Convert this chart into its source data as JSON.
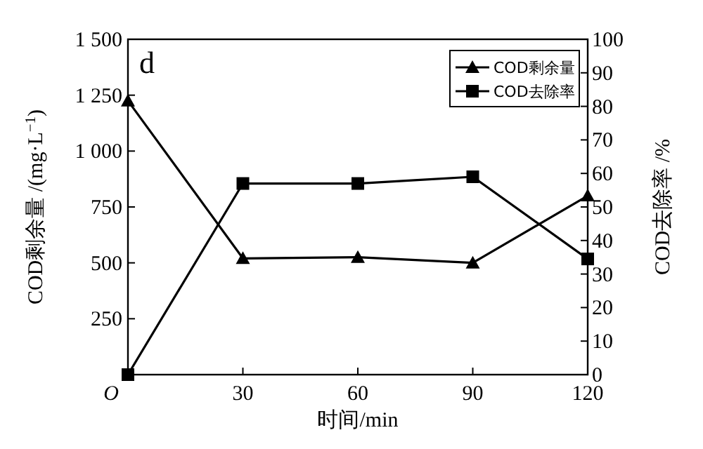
{
  "chart_data": {
    "type": "line",
    "xlabel": "时间/min",
    "ylabel": "COD剩余量 /(mg·L$^{−1}$)",
    "y2label": "COD去除率 /%",
    "annotations": [
      "d"
    ],
    "x": [
      0,
      30,
      60,
      90,
      120
    ],
    "xlim": [
      0,
      120
    ],
    "xticks": [
      {
        "value": 0,
        "label": "O"
      },
      30,
      60,
      90,
      120
    ],
    "ylim": [
      0,
      1500
    ],
    "yticks": [
      {
        "value": 0,
        "label": null
      },
      250,
      500,
      750,
      {
        "value": 1000,
        "label": "1 000"
      },
      {
        "value": 1250,
        "label": "1 250"
      },
      {
        "value": 1500,
        "label": "1 500"
      }
    ],
    "y2lim": [
      0,
      100
    ],
    "y2ticks": [
      0,
      10,
      20,
      30,
      40,
      50,
      60,
      70,
      80,
      90,
      100
    ],
    "legend": "top right",
    "grid": false,
    "line_style": "solid",
    "series": [
      {
        "name": "COD剩余量",
        "color": "#000000",
        "marker": "triangle",
        "values": [
          1225,
          520,
          525,
          500,
          800
        ]
      },
      {
        "name": "COD去除率",
        "color": "#000000",
        "marker": "square",
        "axis": "y2",
        "values": [
          0,
          57,
          57,
          59,
          34.5
        ]
      }
    ]
  }
}
